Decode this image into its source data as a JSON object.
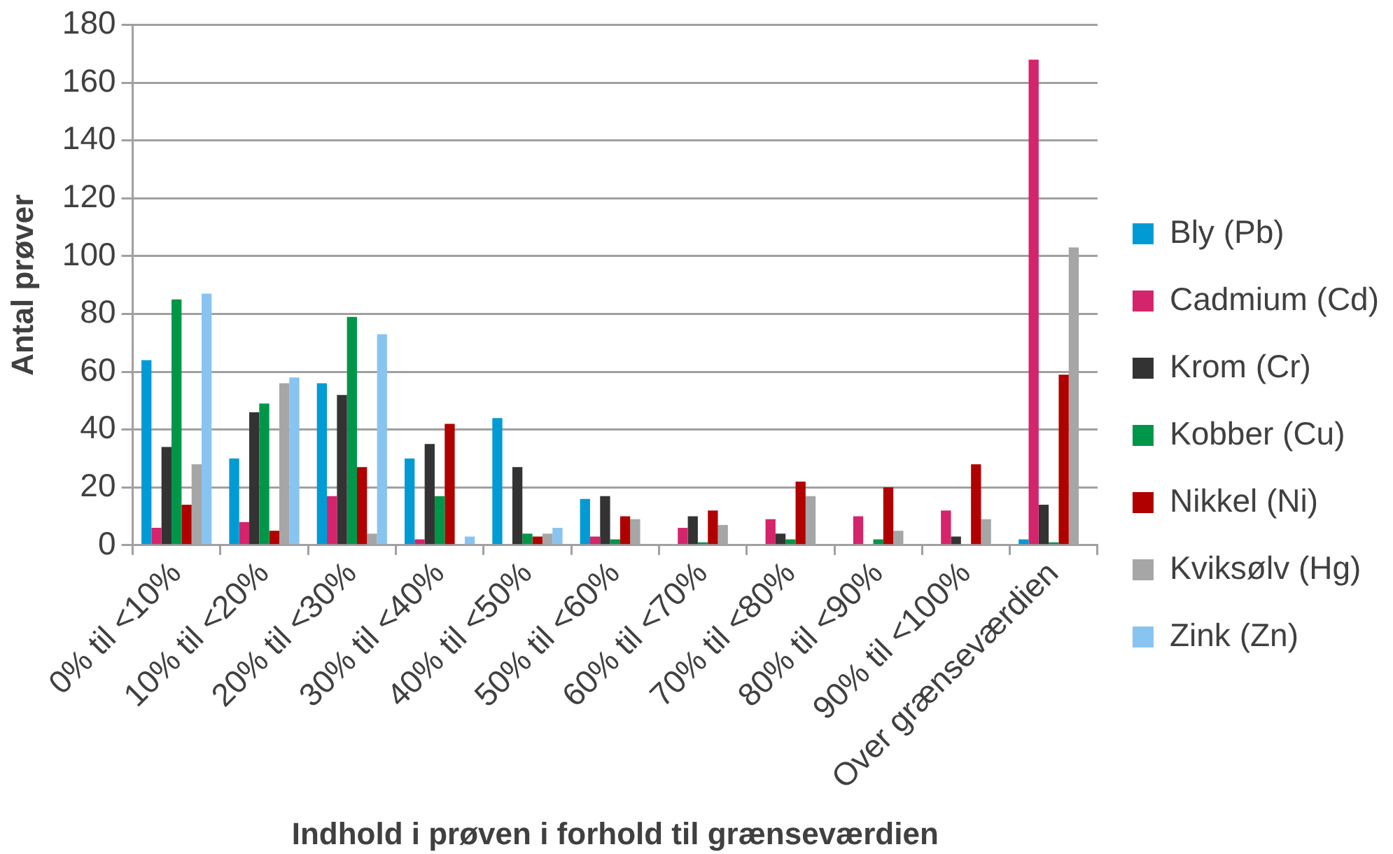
{
  "chart_data": {
    "type": "bar",
    "xlabel": "Indhold i prøven i forhold til grænseværdien",
    "ylabel": "Antal prøver",
    "categories": [
      "0% til <10%",
      "10% til <20%",
      "20% til <30%",
      "30% til <40%",
      "40% til <50%",
      "50% til <60%",
      "60% til <70%",
      "70% til <80%",
      "80% til <90%",
      "90% til <100%",
      "Over grænseværdien"
    ],
    "series": [
      {
        "name": "Bly (Pb)",
        "color": "#009bd5",
        "values": [
          64,
          30,
          56,
          30,
          44,
          16,
          0,
          0,
          0,
          0,
          2
        ]
      },
      {
        "name": "Cadmium (Cd)",
        "color": "#d4246b",
        "values": [
          6,
          8,
          17,
          2,
          0,
          3,
          6,
          9,
          10,
          12,
          168
        ]
      },
      {
        "name": "Krom (Cr)",
        "color": "#333333",
        "values": [
          34,
          46,
          52,
          35,
          27,
          17,
          10,
          4,
          0,
          3,
          14
        ]
      },
      {
        "name": "Kobber (Cu)",
        "color": "#00964a",
        "values": [
          85,
          49,
          79,
          17,
          4,
          2,
          1,
          2,
          2,
          0,
          1
        ]
      },
      {
        "name": "Nikkel (Ni)",
        "color": "#b00000",
        "values": [
          14,
          5,
          27,
          42,
          3,
          10,
          12,
          22,
          20,
          28,
          59
        ]
      },
      {
        "name": "Kviksølv (Hg)",
        "color": "#a6a6a6",
        "values": [
          28,
          56,
          4,
          0,
          4,
          9,
          7,
          17,
          5,
          9,
          103
        ]
      },
      {
        "name": "Zink (Zn)",
        "color": "#88c4f0",
        "values": [
          87,
          58,
          73,
          3,
          6,
          0,
          0,
          0,
          0,
          0,
          0
        ]
      }
    ],
    "ylim": [
      0,
      180
    ],
    "yticks": [
      0,
      20,
      40,
      60,
      80,
      100,
      120,
      140,
      160,
      180
    ],
    "grid": "y",
    "legend": "right"
  }
}
